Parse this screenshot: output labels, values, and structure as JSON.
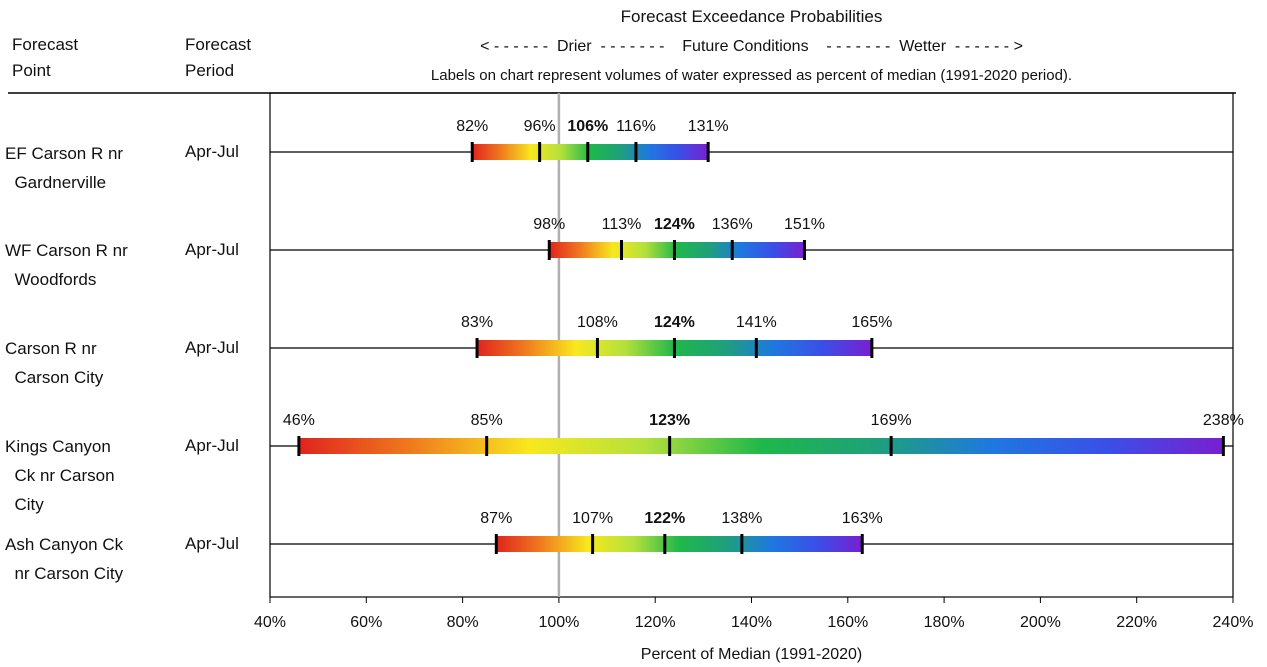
{
  "header": {
    "title": "Forecast Exceedance Probabilities",
    "direction": "< - - - - - -  Drier  - - - - - - -    Future Conditions    - - - - - - -  Wetter  - - - - - - >",
    "note": "Labels on chart represent volumes of water expressed as percent of median (1991-2020 period).",
    "col_point": "Forecast\nPoint",
    "col_period": "Forecast\nPeriod"
  },
  "chart_data": {
    "type": "bar",
    "xlabel": "Percent of Median (1991-2020)",
    "xlim": [
      40,
      240
    ],
    "xticks": [
      40,
      60,
      80,
      100,
      120,
      140,
      160,
      180,
      200,
      220,
      240
    ],
    "tick_labels": [
      "40%",
      "60%",
      "80%",
      "100%",
      "120%",
      "140%",
      "160%",
      "180%",
      "200%",
      "220%",
      "240%"
    ],
    "reference_line": 100,
    "colors": {
      "reference_line": "#b0b0b0",
      "gradient": [
        "#e0241e",
        "#f07d1e",
        "#f8e81e",
        "#b4e03c",
        "#1fb84a",
        "#1fa07a",
        "#1f78e0",
        "#3a4fe8",
        "#7a1fd0"
      ]
    },
    "rows": [
      {
        "point": "EF Carson R nr\n  Gardnerville",
        "period": "Apr-Jul",
        "values": [
          82,
          96,
          106,
          116,
          131
        ],
        "labels": [
          "82%",
          "96%",
          "106%",
          "116%",
          "131%"
        ]
      },
      {
        "point": "WF Carson R nr\n  Woodfords",
        "period": "Apr-Jul",
        "values": [
          98,
          113,
          124,
          136,
          151
        ],
        "labels": [
          "98%",
          "113%",
          "124%",
          "136%",
          "151%"
        ]
      },
      {
        "point": "Carson R nr\n  Carson City",
        "period": "Apr-Jul",
        "values": [
          83,
          108,
          124,
          141,
          165
        ],
        "labels": [
          "83%",
          "108%",
          "124%",
          "141%",
          "165%"
        ]
      },
      {
        "point": "Kings Canyon\n  Ck nr Carson\n  City",
        "period": "Apr-Jul",
        "values": [
          46,
          85,
          123,
          169,
          238
        ],
        "labels": [
          "46%",
          "85%",
          "123%",
          "169%",
          "238%"
        ]
      },
      {
        "point": "Ash Canyon Ck\n  nr Carson City",
        "period": "Apr-Jul",
        "values": [
          87,
          107,
          122,
          138,
          163
        ],
        "labels": [
          "87%",
          "107%",
          "122%",
          "138%",
          "163%"
        ]
      }
    ]
  }
}
